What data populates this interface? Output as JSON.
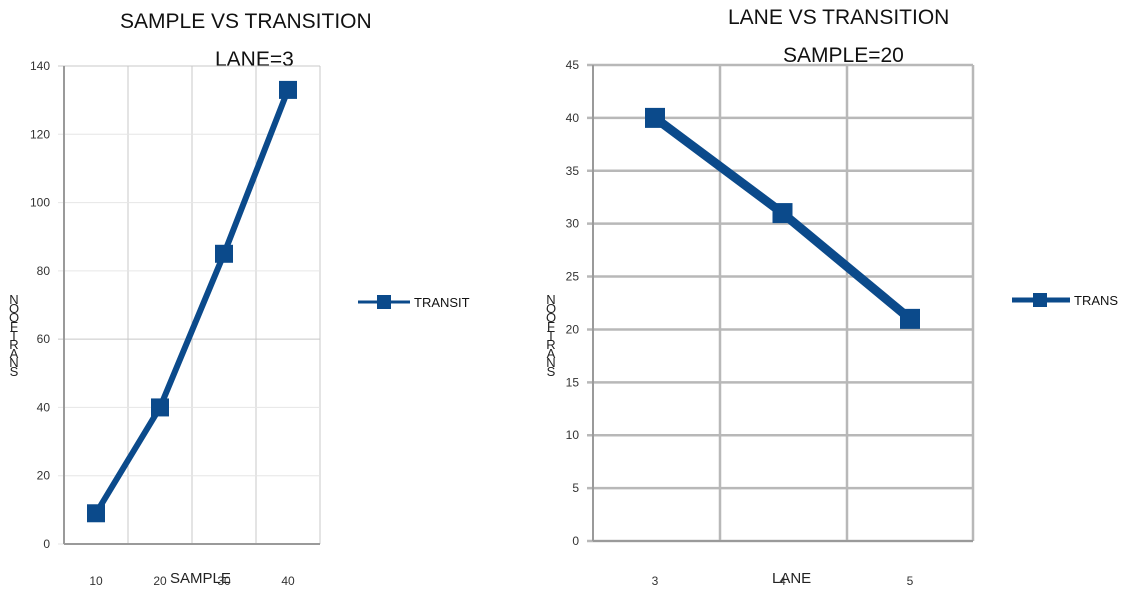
{
  "chart_data": [
    {
      "type": "line",
      "title": "SAMPLE VS TRANSITION",
      "subtitle": "LANE=3",
      "xlabel": "SAMPLE",
      "ylabel": "NO OF TRANS",
      "categories": [
        "10",
        "20",
        "30",
        "40"
      ],
      "series": [
        {
          "name": "TRANSIT",
          "values": [
            9,
            40,
            85,
            133
          ],
          "color": "#0b4a8b"
        }
      ],
      "ylim": [
        0,
        140
      ],
      "yticks": [
        0,
        20,
        40,
        60,
        80,
        100,
        120,
        140
      ],
      "grid": true,
      "legend": "right"
    },
    {
      "type": "line",
      "title": "LANE VS TRANSITION",
      "subtitle": "SAMPLE=20",
      "xlabel": "LANE",
      "ylabel": "NO OF TRANS",
      "categories": [
        "3",
        "4",
        "5"
      ],
      "series": [
        {
          "name": "TRANS",
          "values": [
            40,
            31,
            21
          ],
          "color": "#0b4a8b"
        }
      ],
      "ylim": [
        0,
        45
      ],
      "yticks": [
        0,
        5,
        10,
        15,
        20,
        25,
        30,
        35,
        40,
        45
      ],
      "grid": true,
      "legend": "right"
    }
  ]
}
